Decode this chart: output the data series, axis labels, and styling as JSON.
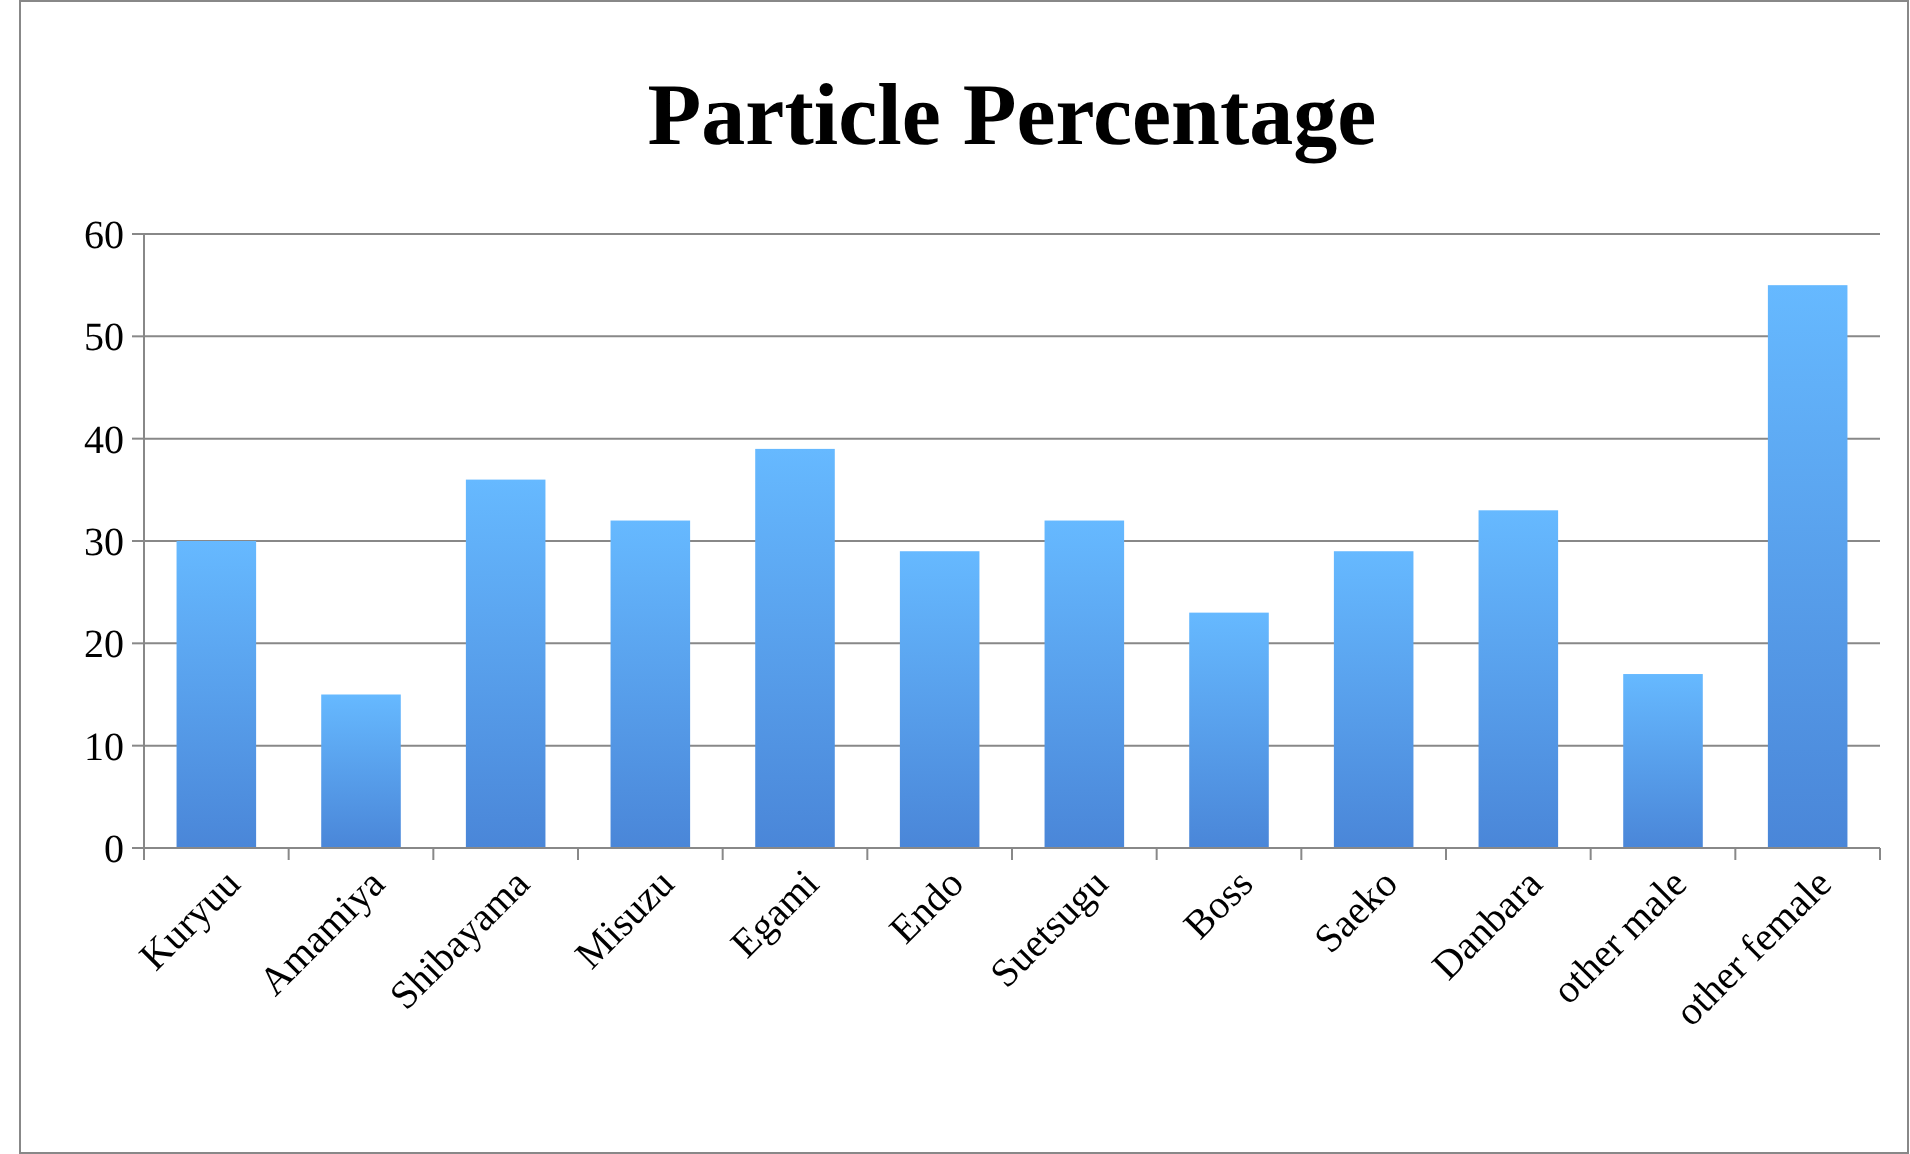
{
  "chart_data": {
    "type": "bar",
    "title": "Particle Percentage",
    "categories": [
      "Kuryuu",
      "Amamiya",
      "Shibayama",
      "Misuzu",
      "Egami",
      "Endo",
      "Suetsugu",
      "Boss",
      "Saeko",
      "Danbara",
      "other male",
      "other female"
    ],
    "values": [
      30,
      15,
      36,
      32,
      39,
      29,
      32,
      23,
      29,
      33,
      17,
      55
    ],
    "color": "#4a86d8",
    "ylim": [
      0,
      60
    ],
    "yticks": [
      0,
      10,
      20,
      30,
      40,
      50,
      60
    ],
    "grid": "y"
  }
}
